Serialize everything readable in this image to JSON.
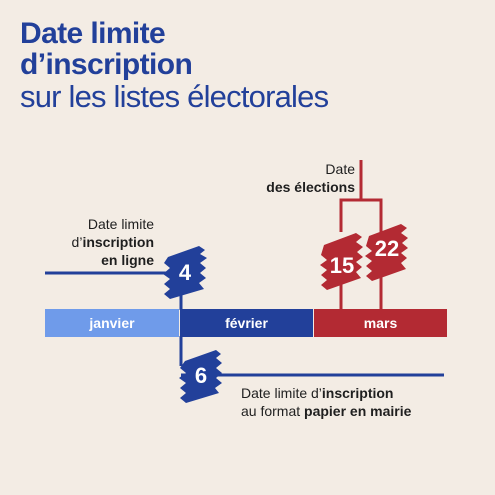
{
  "title": {
    "line1": "Date limite",
    "line2": "d’inscription",
    "line3": "sur les listes électorales"
  },
  "timeline": {
    "months": [
      {
        "label": "janvier",
        "color": "#6f9bea"
      },
      {
        "label": "février",
        "color": "#22409a"
      },
      {
        "label": "mars",
        "color": "#b32a33"
      }
    ]
  },
  "events": {
    "online": {
      "day": "4",
      "label_line1": "Date limite",
      "label_line2_a": "d’",
      "label_line2_b": "inscription",
      "label_line3": "en ligne",
      "color": "#22409a"
    },
    "paper": {
      "day": "6",
      "label_line1_a": "Date limite d’",
      "label_line1_b": "inscription",
      "label_line2_a": "au format ",
      "label_line2_b": "papier en mairie",
      "color": "#22409a"
    },
    "election": {
      "label_line1": "Date",
      "label_line2": "des élections",
      "round1_day": "15",
      "round2_day": "22",
      "color": "#b32a33"
    }
  }
}
